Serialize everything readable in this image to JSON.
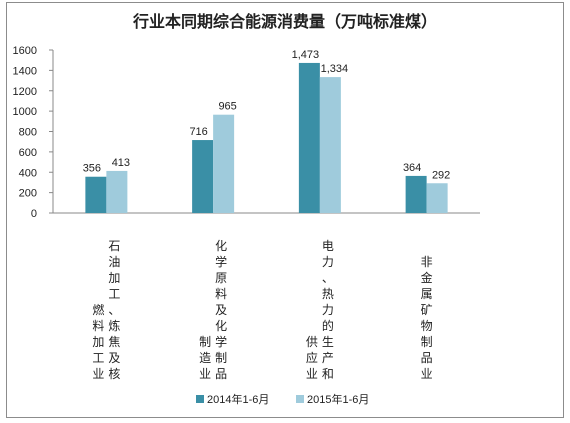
{
  "chart_data": {
    "type": "bar",
    "title": "行业本同期综合能源消费量（万吨标准煤）",
    "categories": [
      "石油加工、炼焦及核燃料加工业",
      "化学原料及化学制品制造业",
      "电力、热力的生产和供应业",
      "非金属矿物制品业"
    ],
    "series": [
      {
        "name": "2014年1-6月",
        "values": [
          356,
          716,
          1473,
          364
        ],
        "labels": [
          "356",
          "716",
          "1,473",
          "364"
        ],
        "color": "#3a8fa6"
      },
      {
        "name": "2015年1-6月",
        "values": [
          413,
          965,
          1334,
          292
        ],
        "labels": [
          "413",
          "965",
          "1,334",
          "292"
        ],
        "color": "#9fcbdc"
      }
    ],
    "yticks": [
      "0",
      "200",
      "400",
      "600",
      "800",
      "1000",
      "1200",
      "1400",
      "1600"
    ],
    "ylim": [
      0,
      1600
    ],
    "grid": false,
    "legend": "bottom"
  }
}
